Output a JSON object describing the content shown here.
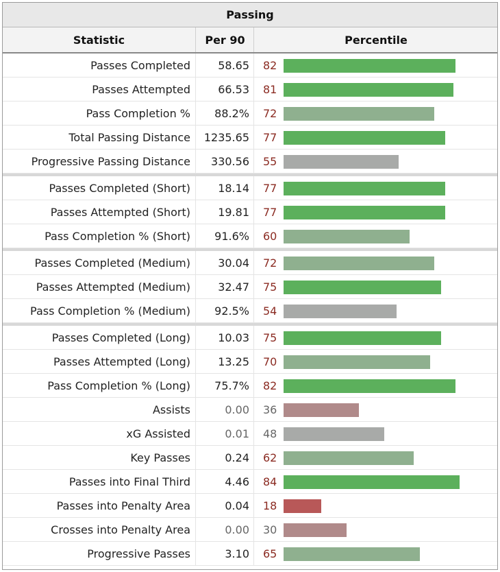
{
  "title": "Passing",
  "headers": {
    "statistic": "Statistic",
    "per90": "Per 90",
    "percentile": "Percentile"
  },
  "chart_data": {
    "type": "table",
    "title": "Passing",
    "columns": [
      "Statistic",
      "Per 90",
      "Percentile"
    ],
    "groups": [
      [
        {
          "statistic": "Passes Completed",
          "per90": "58.65",
          "percentile": 82
        },
        {
          "statistic": "Passes Attempted",
          "per90": "66.53",
          "percentile": 81
        },
        {
          "statistic": "Pass Completion %",
          "per90": "88.2%",
          "percentile": 72
        },
        {
          "statistic": "Total Passing Distance",
          "per90": "1235.65",
          "percentile": 77
        },
        {
          "statistic": "Progressive Passing Distance",
          "per90": "330.56",
          "percentile": 55
        }
      ],
      [
        {
          "statistic": "Passes Completed (Short)",
          "per90": "18.14",
          "percentile": 77
        },
        {
          "statistic": "Passes Attempted (Short)",
          "per90": "19.81",
          "percentile": 77
        },
        {
          "statistic": "Pass Completion % (Short)",
          "per90": "91.6%",
          "percentile": 60
        }
      ],
      [
        {
          "statistic": "Passes Completed (Medium)",
          "per90": "30.04",
          "percentile": 72
        },
        {
          "statistic": "Passes Attempted (Medium)",
          "per90": "32.47",
          "percentile": 75
        },
        {
          "statistic": "Pass Completion % (Medium)",
          "per90": "92.5%",
          "percentile": 54
        }
      ],
      [
        {
          "statistic": "Passes Completed (Long)",
          "per90": "10.03",
          "percentile": 75
        },
        {
          "statistic": "Passes Attempted (Long)",
          "per90": "13.25",
          "percentile": 70
        },
        {
          "statistic": "Pass Completion % (Long)",
          "per90": "75.7%",
          "percentile": 82
        },
        {
          "statistic": "Assists",
          "per90": "0.00",
          "percentile": 36
        },
        {
          "statistic": "xG Assisted",
          "per90": "0.01",
          "percentile": 48
        },
        {
          "statistic": "Key Passes",
          "per90": "0.24",
          "percentile": 62
        },
        {
          "statistic": "Passes into Final Third",
          "per90": "4.46",
          "percentile": 84
        },
        {
          "statistic": "Passes into Penalty Area",
          "per90": "0.04",
          "percentile": 18
        },
        {
          "statistic": "Crosses into Penalty Area",
          "per90": "0.00",
          "percentile": 30
        },
        {
          "statistic": "Progressive Passes",
          "per90": "3.10",
          "percentile": 65
        }
      ]
    ],
    "percentile_range": [
      0,
      100
    ],
    "bar_colors": {
      "high": "#5cb05c",
      "mid": "#8fb08f",
      "neutral": "#a8aaa8",
      "low_mid": "#b08a8a",
      "low": "#b85858"
    }
  }
}
